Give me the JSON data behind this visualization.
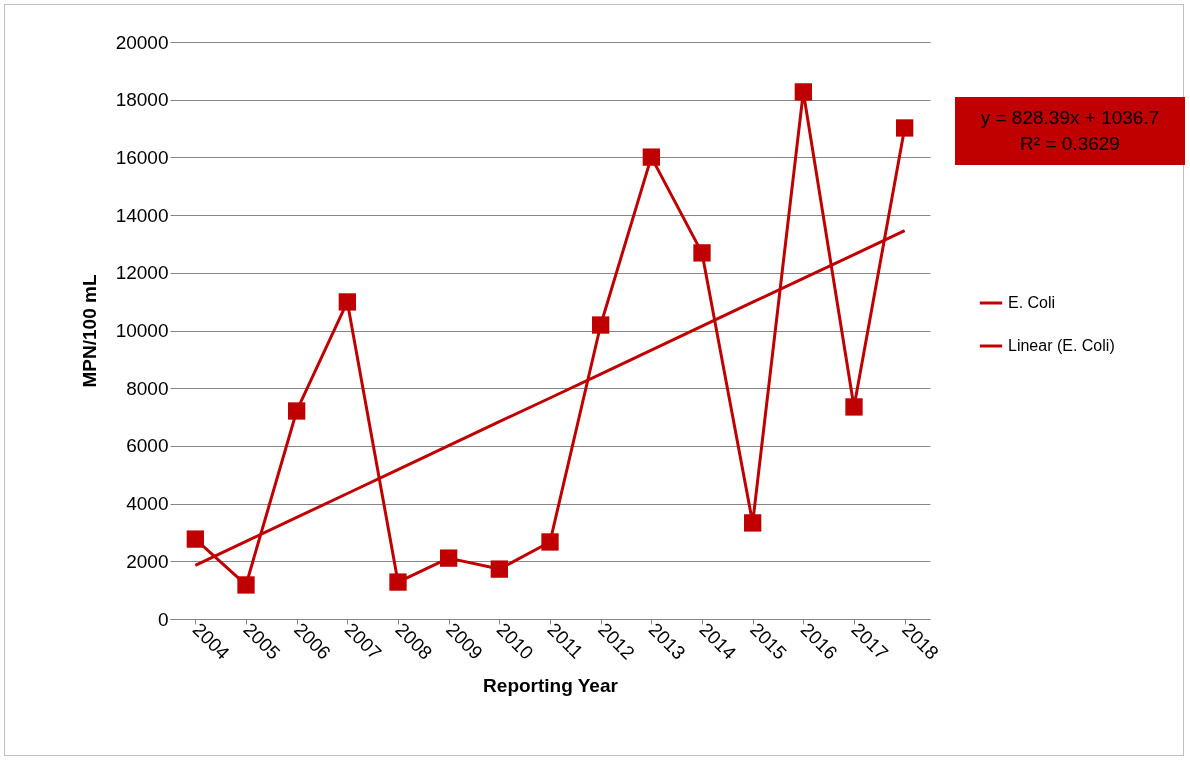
{
  "chart_data": {
    "type": "line",
    "xlabel": "Reporting Year",
    "ylabel": "MPN/100 mL",
    "categories": [
      "2004",
      "2005",
      "2006",
      "2007",
      "2008",
      "2009",
      "2010",
      "2011",
      "2012",
      "2013",
      "2014",
      "2015",
      "2016",
      "2017",
      "2018"
    ],
    "series": [
      {
        "name": "E. Coli",
        "color": "#c00000",
        "marker": "square",
        "values": [
          2770,
          1180,
          7210,
          10990,
          1280,
          2110,
          1730,
          2670,
          10190,
          16010,
          12690,
          3330,
          18270,
          7350,
          17020
        ]
      },
      {
        "name": "Linear (E. Coli)",
        "color": "#c00000",
        "marker": "none",
        "values": [
          1860,
          2690,
          3520,
          4350,
          5180,
          6010,
          6840,
          7660,
          8490,
          9320,
          10150,
          10980,
          11810,
          12630,
          13460
        ]
      }
    ],
    "ylim": [
      0,
      20000
    ],
    "yticks": [
      0,
      2000,
      4000,
      6000,
      8000,
      10000,
      12000,
      14000,
      16000,
      18000,
      20000
    ],
    "grid": "y",
    "legend": "right",
    "line_style": "solid",
    "annotations": [
      "y = 828.39x + 1036.7",
      "R² = 0.3629"
    ]
  }
}
